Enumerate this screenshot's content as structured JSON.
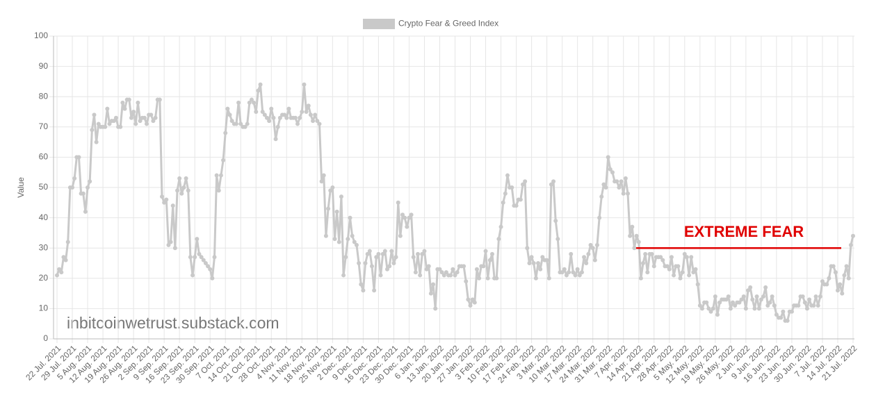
{
  "chart_data": {
    "type": "line",
    "ylabel": "Value",
    "watermark": "inbitcoinwetrust.substack.com",
    "annotation": {
      "text": "EXTREME FEAR",
      "value": 30,
      "color": "#e00000"
    },
    "grid": true,
    "legend": "top",
    "ylim": [
      0,
      100
    ],
    "yticks": [
      0,
      10,
      20,
      30,
      40,
      50,
      60,
      70,
      80,
      90,
      100
    ],
    "categories": [
      "22 Jul. 2021",
      null,
      null,
      null,
      null,
      null,
      null,
      "29 Jul. 2021",
      null,
      null,
      null,
      null,
      null,
      null,
      "5 Aug. 2021",
      null,
      null,
      null,
      null,
      null,
      null,
      "12 Aug. 2021",
      null,
      null,
      null,
      null,
      null,
      null,
      "19 Aug. 2021",
      null,
      null,
      null,
      null,
      null,
      null,
      "26 Aug. 2021",
      null,
      null,
      null,
      null,
      null,
      null,
      "2 Sep. 2021",
      null,
      null,
      null,
      null,
      null,
      null,
      "9 Sep. 2021",
      null,
      null,
      null,
      null,
      null,
      null,
      "16 Sep. 2021",
      null,
      null,
      null,
      null,
      null,
      null,
      "23 Sep. 2021",
      null,
      null,
      null,
      null,
      null,
      null,
      "30 Sep. 2021",
      null,
      null,
      null,
      null,
      null,
      null,
      "7 Oct. 2021",
      null,
      null,
      null,
      null,
      null,
      null,
      "14 Oct. 2021",
      null,
      null,
      null,
      null,
      null,
      null,
      "21 Oct. 2021",
      null,
      null,
      null,
      null,
      null,
      null,
      "28 Oct. 2021",
      null,
      null,
      null,
      null,
      null,
      null,
      "4 Nov. 2021",
      null,
      null,
      null,
      null,
      null,
      null,
      "11 Nov. 2021",
      null,
      null,
      null,
      null,
      null,
      null,
      "18 Nov. 2021",
      null,
      null,
      null,
      null,
      null,
      null,
      "25 Nov. 2021",
      null,
      null,
      null,
      null,
      null,
      null,
      "2 Dec. 2021",
      null,
      null,
      null,
      null,
      null,
      null,
      "9 Dec. 2021",
      null,
      null,
      null,
      null,
      null,
      null,
      "16 Dec. 2021",
      null,
      null,
      null,
      null,
      null,
      null,
      "23 Dec. 2021",
      null,
      null,
      null,
      null,
      null,
      null,
      "30 Dec. 2021",
      null,
      null,
      null,
      null,
      null,
      null,
      "6 Jan. 2022",
      null,
      null,
      null,
      null,
      null,
      null,
      "13 Jan. 2022",
      null,
      null,
      null,
      null,
      null,
      null,
      "20 Jan. 2022",
      null,
      null,
      null,
      null,
      null,
      null,
      "27 Jan. 2022",
      null,
      null,
      null,
      null,
      null,
      null,
      "3 Feb. 2022",
      null,
      null,
      null,
      null,
      null,
      null,
      "10 Feb. 2022",
      null,
      null,
      null,
      null,
      null,
      null,
      "17 Feb. 2022",
      null,
      null,
      null,
      null,
      null,
      null,
      "24 Feb. 2022",
      null,
      null,
      null,
      null,
      null,
      null,
      "3 Mar. 2022",
      null,
      null,
      null,
      null,
      null,
      null,
      "10 Mar. 2022",
      null,
      null,
      null,
      null,
      null,
      null,
      "17 Mar. 2022",
      null,
      null,
      null,
      null,
      null,
      null,
      "24 Mar. 2022",
      null,
      null,
      null,
      null,
      null,
      null,
      "31 Mar. 2022",
      null,
      null,
      null,
      null,
      null,
      null,
      "7 Apr. 2022",
      null,
      null,
      null,
      null,
      null,
      null,
      "14 Apr. 2022",
      null,
      null,
      null,
      null,
      null,
      null,
      "21 Apr. 2022",
      null,
      null,
      null,
      null,
      null,
      null,
      "28 Apr. 2022",
      null,
      null,
      null,
      null,
      null,
      null,
      "5 May. 2022",
      null,
      null,
      null,
      null,
      null,
      null,
      "12 May. 2022",
      null,
      null,
      null,
      null,
      null,
      null,
      "19 May. 2022",
      null,
      null,
      null,
      null,
      null,
      null,
      "26 May. 2022",
      null,
      null,
      null,
      null,
      null,
      null,
      "2 Jun. 2022",
      null,
      null,
      null,
      null,
      null,
      null,
      "9 Jun. 2022",
      null,
      null,
      null,
      null,
      null,
      null,
      "16 Jun. 2022",
      null,
      null,
      null,
      null,
      null,
      null,
      "23 Jun. 2022",
      null,
      null,
      null,
      null,
      null,
      null,
      "30 Jun. 2022",
      null,
      null,
      null,
      null,
      null,
      null,
      "7 Jul. 2022",
      null,
      null,
      null,
      null,
      null,
      null,
      "14 Jul. 2022",
      null,
      null,
      null,
      null,
      null,
      null,
      "21 Jul. 2022"
    ],
    "series": [
      {
        "name": "Crypto Fear & Greed Index",
        "color": "#c9c9c9",
        "values": [
          21,
          23,
          22,
          27,
          26,
          32,
          50,
          50,
          53,
          60,
          60,
          48,
          48,
          42,
          50,
          52,
          69,
          74,
          65,
          71,
          70,
          70,
          70,
          76,
          71,
          72,
          72,
          73,
          70,
          70,
          78,
          76,
          79,
          79,
          73,
          75,
          71,
          78,
          72,
          73,
          73,
          71,
          74,
          74,
          72,
          73,
          79,
          79,
          47,
          45,
          46,
          31,
          32,
          44,
          30,
          49,
          53,
          48,
          50,
          53,
          49,
          27,
          21,
          27,
          33,
          28,
          27,
          26,
          25,
          24,
          23,
          20,
          27,
          54,
          49,
          54,
          59,
          68,
          76,
          74,
          72,
          71,
          71,
          78,
          71,
          70,
          70,
          71,
          78,
          79,
          78,
          75,
          82,
          84,
          75,
          74,
          73,
          72,
          76,
          73,
          66,
          70,
          73,
          74,
          74,
          73,
          76,
          73,
          73,
          73,
          71,
          73,
          75,
          84,
          75,
          77,
          74,
          72,
          74,
          72,
          71,
          52,
          54,
          34,
          43,
          49,
          50,
          33,
          42,
          32,
          47,
          21,
          27,
          33,
          40,
          34,
          32,
          31,
          25,
          18,
          16,
          25,
          28,
          29,
          24,
          16,
          27,
          28,
          21,
          28,
          29,
          23,
          24,
          29,
          25,
          27,
          45,
          34,
          41,
          40,
          37,
          40,
          41,
          27,
          22,
          28,
          21,
          28,
          29,
          23,
          24,
          15,
          18,
          10,
          23,
          23,
          22,
          21,
          22,
          21,
          21,
          23,
          21,
          22,
          24,
          24,
          24,
          19,
          13,
          11,
          13,
          12,
          23,
          20,
          24,
          24,
          29,
          20,
          26,
          28,
          20,
          20,
          33,
          37,
          45,
          48,
          54,
          50,
          50,
          44,
          44,
          46,
          46,
          51,
          52,
          30,
          25,
          27,
          25,
          20,
          25,
          23,
          27,
          26,
          26,
          20,
          51,
          52,
          39,
          33,
          22,
          22,
          23,
          21,
          22,
          28,
          22,
          21,
          23,
          21,
          22,
          27,
          25,
          28,
          31,
          30,
          26,
          31,
          40,
          47,
          51,
          50,
          60,
          56,
          55,
          52,
          52,
          50,
          52,
          48,
          53,
          48,
          34,
          37,
          30,
          34,
          32,
          20,
          25,
          28,
          22,
          28,
          28,
          24,
          27,
          27,
          27,
          26,
          24,
          24,
          23,
          27,
          21,
          24,
          24,
          20,
          22,
          28,
          27,
          21,
          27,
          22,
          23,
          18,
          11,
          10,
          12,
          12,
          10,
          9,
          10,
          14,
          8,
          12,
          13,
          13,
          13,
          14,
          10,
          12,
          11,
          12,
          12,
          13,
          14,
          10,
          16,
          17,
          13,
          10,
          14,
          10,
          13,
          14,
          17,
          11,
          12,
          14,
          11,
          8,
          7,
          7,
          9,
          6,
          6,
          9,
          9,
          11,
          11,
          11,
          14,
          14,
          12,
          10,
          13,
          11,
          11,
          14,
          11,
          14,
          19,
          18,
          18,
          20,
          24,
          24,
          22,
          16,
          18,
          15,
          21,
          24,
          20,
          31,
          34
        ]
      }
    ]
  }
}
